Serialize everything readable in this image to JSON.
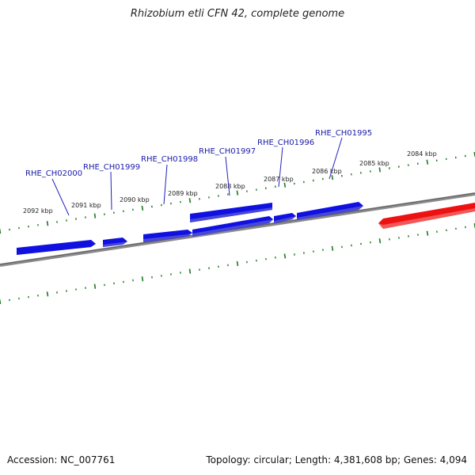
{
  "title": "Rhizobium etli CFN 42, complete genome",
  "accession": "Accession: NC_007761",
  "footer": "Topology: circular; Length: 4,381,608 bp; Genes: 4,094",
  "colors": {
    "backbone": "#7a7a7a",
    "ticks": "#1f7a1f",
    "gene_forward": "#1010e0",
    "gene_reverse": "#ee1111",
    "label": "#1a1aa8"
  },
  "ruler_labels": [
    "2084 kbp",
    "2085 kbp",
    "2086 kbp",
    "2087 kbp",
    "2088 kbp",
    "2089 kbp",
    "2090 kbp",
    "2091 kbp",
    "2092 kbp"
  ],
  "gene_labels": [
    "RHE_CH02000",
    "RHE_CH01999",
    "RHE_CH01998",
    "RHE_CH01997",
    "RHE_CH01996",
    "RHE_CH01995"
  ]
}
